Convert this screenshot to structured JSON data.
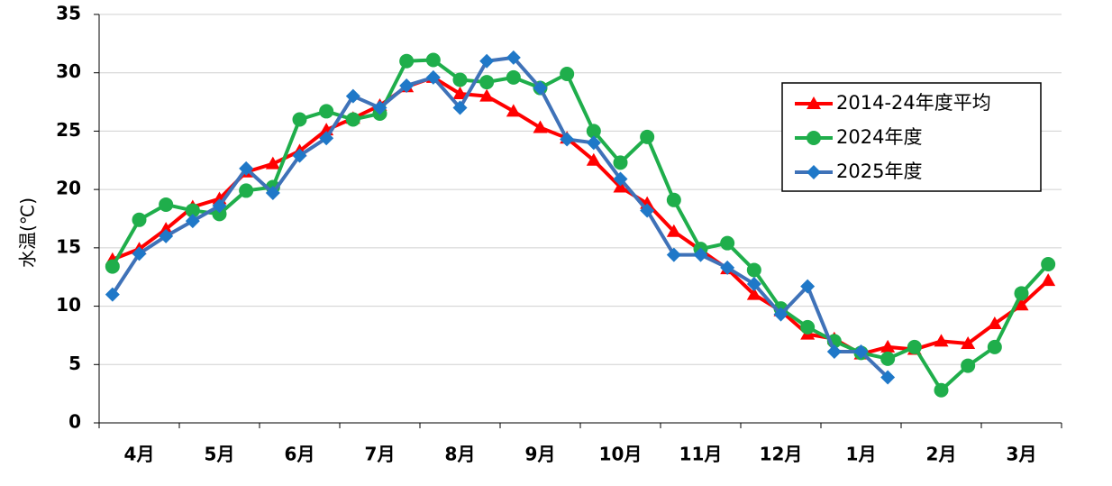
{
  "chart_data": {
    "type": "line",
    "y_label": "水温(℃)",
    "categories": [
      null,
      "4月",
      null,
      null,
      "5月",
      null,
      null,
      "6月",
      null,
      null,
      "7月",
      null,
      null,
      "8月",
      null,
      null,
      "9月",
      null,
      null,
      "10月",
      null,
      null,
      "11月",
      null,
      null,
      "12月",
      null,
      null,
      "1月",
      null,
      null,
      "2月",
      null,
      null,
      "3月",
      null
    ],
    "ylim": [
      0,
      35
    ],
    "yticks": [
      0,
      5,
      10,
      15,
      20,
      25,
      30,
      35
    ],
    "grid": true,
    "legend": "top-right",
    "series": [
      {
        "name": "2014-24年度平均",
        "color": "#ff0000",
        "marker": "triangle",
        "values": [
          14.0,
          14.9,
          16.6,
          18.5,
          19.2,
          21.5,
          22.2,
          23.3,
          25.1,
          26.1,
          27.2,
          28.8,
          29.6,
          28.2,
          28.0,
          26.7,
          25.3,
          24.4,
          22.5,
          20.2,
          18.8,
          16.4,
          14.8,
          13.2,
          11.0,
          9.6,
          7.6,
          7.2,
          5.9,
          6.5,
          6.3,
          7.0,
          6.8,
          8.5,
          10.1,
          12.2
        ]
      },
      {
        "name": "2024年度",
        "color": "#1fae4b",
        "marker": "circle",
        "values": [
          13.4,
          17.4,
          18.7,
          18.2,
          17.9,
          19.9,
          20.2,
          26.0,
          26.7,
          26.0,
          26.5,
          31.0,
          31.1,
          29.4,
          29.2,
          29.6,
          28.7,
          29.9,
          25.0,
          22.3,
          24.5,
          19.1,
          14.9,
          15.4,
          13.1,
          9.8,
          8.2,
          7.0,
          6.0,
          5.5,
          6.5,
          2.8,
          4.9,
          6.5,
          11.1,
          13.6
        ]
      },
      {
        "name": "2025年度",
        "color": "#3f72b8",
        "marker": "diamond",
        "values": [
          11.0,
          14.5,
          16.0,
          17.3,
          18.6,
          21.8,
          19.7,
          22.9,
          24.4,
          28.0,
          27.0,
          28.9,
          29.6,
          27.0,
          31.0,
          31.3,
          28.7,
          24.3,
          24.0,
          20.9,
          18.2,
          14.4,
          14.4,
          13.3,
          11.9,
          9.3,
          11.7,
          6.1,
          6.1,
          3.9,
          null,
          null,
          null,
          null,
          null,
          null
        ]
      }
    ]
  }
}
